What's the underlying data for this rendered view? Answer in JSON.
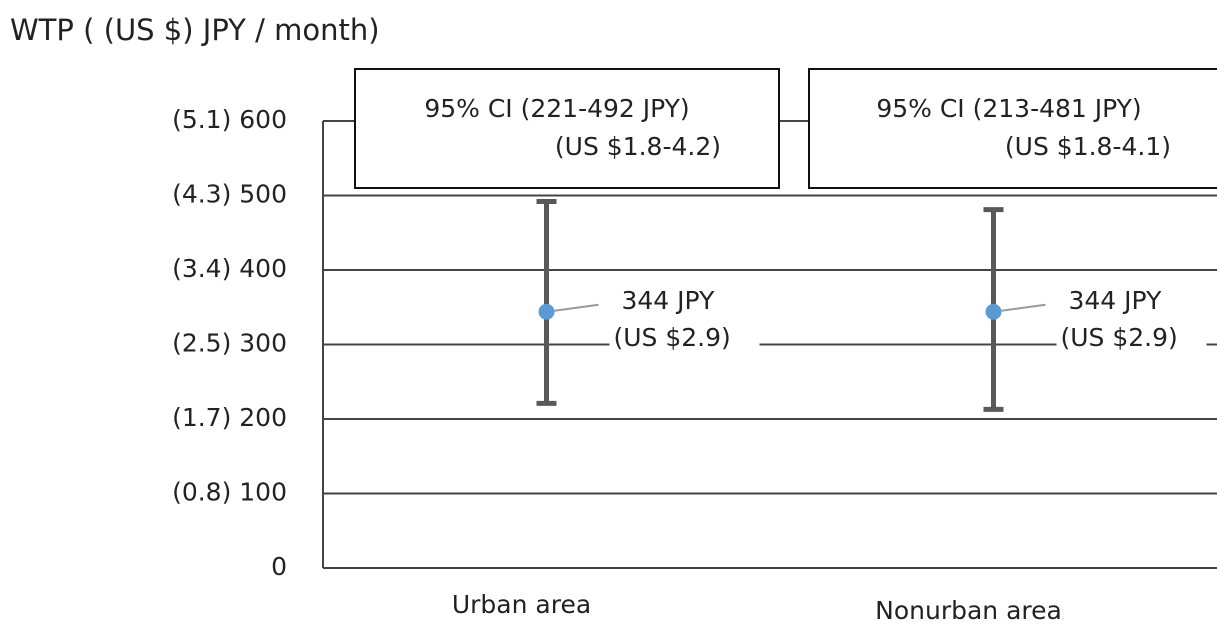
{
  "chart_data": {
    "type": "errorbar",
    "title": "WTP ( (US $) JPY / month)",
    "categories": [
      "Urban area",
      "Nonurban area"
    ],
    "values": [
      344,
      344
    ],
    "value_labels": [
      [
        "344 JPY",
        "(US $2.9)"
      ],
      [
        "344 JPY",
        "(US $2.9)"
      ]
    ],
    "ci_low": [
      221,
      213
    ],
    "ci_high": [
      492,
      481
    ],
    "annotations": [
      [
        "95% CI (221-492 JPY)",
        "(US $1.8-4.2)"
      ],
      [
        "95% CI (213-481 JPY)",
        "(US $1.8-4.1)"
      ]
    ],
    "ylim": [
      0,
      600
    ],
    "yticks": [
      0,
      {
        "value": 100,
        "label": "(0.8) 100"
      },
      {
        "value": 200,
        "label": "(1.7) 200"
      },
      {
        "value": 300,
        "label": "(2.5) 300"
      },
      {
        "value": 400,
        "label": "(3.4) 400"
      },
      {
        "value": 500,
        "label": "(4.3) 500"
      },
      {
        "value": 600,
        "label": "(5.1) 600"
      }
    ],
    "marker_color": "#5b9bd5",
    "bar_color": "#595959",
    "grid": true
  }
}
